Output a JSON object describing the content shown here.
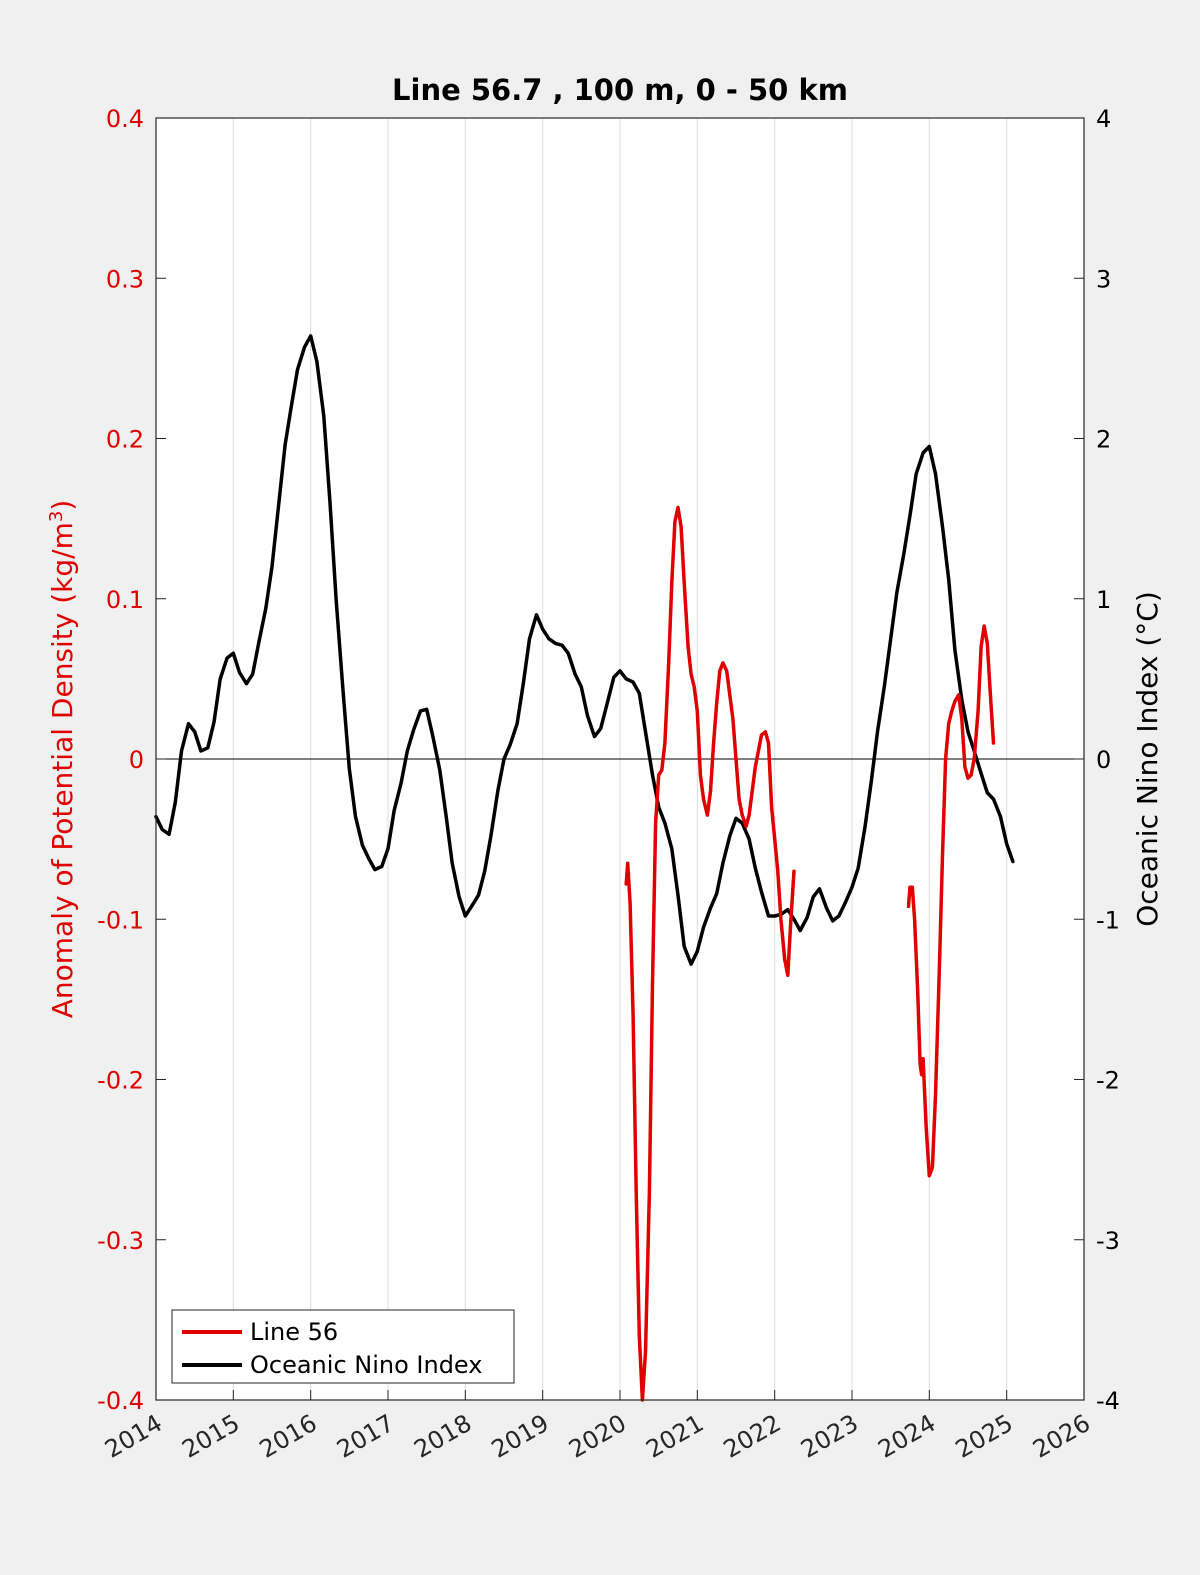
{
  "chart_data": {
    "type": "line",
    "title": "Line 56.7 , 100 m, 0 - 50 km",
    "ylabel_left_main": "Anomaly of Potential Density (kg/m",
    "ylabel_left_sup": "3",
    "ylabel_left_end": ")",
    "ylabel_right": "Oceanic Nino Index (°C)",
    "xlim": [
      2014,
      2026
    ],
    "ylim_left": [
      -0.4,
      0.4
    ],
    "ylim_right": [
      -4,
      4
    ],
    "x_ticks": [
      "2014",
      "2015",
      "2016",
      "2017",
      "2018",
      "2019",
      "2020",
      "2021",
      "2022",
      "2023",
      "2024",
      "2025",
      "2026"
    ],
    "y_left_ticks": [
      "-0.4",
      "-0.3",
      "-0.2",
      "-0.1",
      "0",
      "0.1",
      "0.2",
      "0.3",
      "0.4"
    ],
    "y_right_ticks": [
      "-4",
      "-3",
      "-2",
      "-1",
      "0",
      "1",
      "2",
      "3",
      "4"
    ],
    "grid": "vertical",
    "legend_position": "bottom-left",
    "colors": {
      "line56": "#e00000",
      "oni": "#000000",
      "left_axis": "#e00000"
    },
    "series": [
      {
        "name": "Line 56",
        "axis": "left",
        "segments": [
          [
            [
              2020.08,
              -0.078
            ],
            [
              2020.1,
              -0.065
            ],
            [
              2020.13,
              -0.09
            ],
            [
              2020.17,
              -0.16
            ],
            [
              2020.21,
              -0.27
            ],
            [
              2020.25,
              -0.36
            ],
            [
              2020.29,
              -0.4
            ],
            [
              2020.33,
              -0.37
            ],
            [
              2020.38,
              -0.27
            ],
            [
              2020.42,
              -0.14
            ],
            [
              2020.46,
              -0.04
            ],
            [
              2020.5,
              -0.01
            ],
            [
              2020.54,
              -0.007
            ],
            [
              2020.58,
              0.01
            ],
            [
              2020.63,
              0.06
            ],
            [
              2020.67,
              0.11
            ],
            [
              2020.71,
              0.148
            ],
            [
              2020.75,
              0.157
            ],
            [
              2020.79,
              0.145
            ],
            [
              2020.83,
              0.11
            ],
            [
              2020.88,
              0.07
            ],
            [
              2020.92,
              0.053
            ],
            [
              2020.96,
              0.045
            ],
            [
              2021.0,
              0.03
            ],
            [
              2021.04,
              -0.01
            ],
            [
              2021.08,
              -0.025
            ],
            [
              2021.13,
              -0.035
            ],
            [
              2021.17,
              -0.02
            ],
            [
              2021.21,
              0.01
            ],
            [
              2021.25,
              0.035
            ],
            [
              2021.29,
              0.055
            ],
            [
              2021.33,
              0.06
            ],
            [
              2021.38,
              0.055
            ],
            [
              2021.42,
              0.04
            ],
            [
              2021.46,
              0.025
            ],
            [
              2021.5,
              0.0
            ],
            [
              2021.54,
              -0.025
            ],
            [
              2021.58,
              -0.035
            ],
            [
              2021.63,
              -0.042
            ],
            [
              2021.67,
              -0.035
            ],
            [
              2021.71,
              -0.02
            ],
            [
              2021.75,
              -0.005
            ],
            [
              2021.79,
              0.005
            ],
            [
              2021.83,
              0.015
            ],
            [
              2021.88,
              0.017
            ],
            [
              2021.92,
              0.01
            ],
            [
              2021.96,
              -0.03
            ],
            [
              2022.0,
              -0.05
            ],
            [
              2022.04,
              -0.07
            ],
            [
              2022.08,
              -0.1
            ],
            [
              2022.13,
              -0.125
            ],
            [
              2022.17,
              -0.135
            ],
            [
              2022.21,
              -0.1
            ],
            [
              2022.25,
              -0.07
            ]
          ],
          [
            [
              2023.73,
              -0.092
            ],
            [
              2023.75,
              -0.08
            ],
            [
              2023.78,
              -0.08
            ],
            [
              2023.81,
              -0.1
            ],
            [
              2023.85,
              -0.145
            ],
            [
              2023.88,
              -0.19
            ],
            [
              2023.9,
              -0.197
            ],
            [
              2023.92,
              -0.187
            ],
            [
              2023.96,
              -0.23
            ],
            [
              2024.0,
              -0.26
            ],
            [
              2024.04,
              -0.255
            ],
            [
              2024.08,
              -0.21
            ],
            [
              2024.13,
              -0.13
            ],
            [
              2024.17,
              -0.06
            ],
            [
              2024.21,
              0.0
            ],
            [
              2024.25,
              0.022
            ],
            [
              2024.29,
              0.03
            ],
            [
              2024.33,
              0.036
            ],
            [
              2024.38,
              0.04
            ],
            [
              2024.42,
              0.025
            ],
            [
              2024.46,
              -0.005
            ],
            [
              2024.5,
              -0.012
            ],
            [
              2024.54,
              -0.01
            ],
            [
              2024.58,
              0.0
            ],
            [
              2024.63,
              0.03
            ],
            [
              2024.67,
              0.07
            ],
            [
              2024.71,
              0.083
            ],
            [
              2024.75,
              0.072
            ],
            [
              2024.79,
              0.04
            ],
            [
              2024.83,
              0.01
            ]
          ]
        ]
      },
      {
        "name": "Oceanic Nino Index",
        "axis": "right",
        "points": [
          [
            2014.0,
            -0.36
          ],
          [
            2014.08,
            -0.44
          ],
          [
            2014.17,
            -0.47
          ],
          [
            2014.25,
            -0.27
          ],
          [
            2014.33,
            0.05
          ],
          [
            2014.42,
            0.22
          ],
          [
            2014.5,
            0.17
          ],
          [
            2014.58,
            0.05
          ],
          [
            2014.67,
            0.07
          ],
          [
            2014.75,
            0.23
          ],
          [
            2014.83,
            0.5
          ],
          [
            2014.92,
            0.63
          ],
          [
            2015.0,
            0.66
          ],
          [
            2015.08,
            0.54
          ],
          [
            2015.17,
            0.47
          ],
          [
            2015.25,
            0.53
          ],
          [
            2015.33,
            0.73
          ],
          [
            2015.42,
            0.94
          ],
          [
            2015.5,
            1.2
          ],
          [
            2015.58,
            1.56
          ],
          [
            2015.67,
            1.96
          ],
          [
            2015.75,
            2.2
          ],
          [
            2015.83,
            2.43
          ],
          [
            2015.92,
            2.57
          ],
          [
            2016.0,
            2.64
          ],
          [
            2016.08,
            2.48
          ],
          [
            2016.17,
            2.14
          ],
          [
            2016.25,
            1.6
          ],
          [
            2016.33,
            0.99
          ],
          [
            2016.42,
            0.42
          ],
          [
            2016.5,
            -0.06
          ],
          [
            2016.58,
            -0.36
          ],
          [
            2016.67,
            -0.54
          ],
          [
            2016.75,
            -0.62
          ],
          [
            2016.83,
            -0.69
          ],
          [
            2016.92,
            -0.67
          ],
          [
            2017.0,
            -0.56
          ],
          [
            2017.08,
            -0.32
          ],
          [
            2017.17,
            -0.15
          ],
          [
            2017.25,
            0.05
          ],
          [
            2017.33,
            0.18
          ],
          [
            2017.42,
            0.3
          ],
          [
            2017.5,
            0.31
          ],
          [
            2017.58,
            0.14
          ],
          [
            2017.67,
            -0.07
          ],
          [
            2017.75,
            -0.35
          ],
          [
            2017.83,
            -0.65
          ],
          [
            2017.92,
            -0.86
          ],
          [
            2018.0,
            -0.98
          ],
          [
            2018.08,
            -0.92
          ],
          [
            2018.17,
            -0.85
          ],
          [
            2018.25,
            -0.7
          ],
          [
            2018.33,
            -0.48
          ],
          [
            2018.42,
            -0.2
          ],
          [
            2018.5,
            0.0
          ],
          [
            2018.58,
            0.09
          ],
          [
            2018.67,
            0.22
          ],
          [
            2018.75,
            0.47
          ],
          [
            2018.83,
            0.75
          ],
          [
            2018.92,
            0.9
          ],
          [
            2019.0,
            0.81
          ],
          [
            2019.08,
            0.75
          ],
          [
            2019.17,
            0.72
          ],
          [
            2019.25,
            0.71
          ],
          [
            2019.33,
            0.66
          ],
          [
            2019.42,
            0.53
          ],
          [
            2019.5,
            0.45
          ],
          [
            2019.58,
            0.27
          ],
          [
            2019.67,
            0.14
          ],
          [
            2019.75,
            0.19
          ],
          [
            2019.83,
            0.34
          ],
          [
            2019.92,
            0.51
          ],
          [
            2020.0,
            0.55
          ],
          [
            2020.08,
            0.5
          ],
          [
            2020.17,
            0.48
          ],
          [
            2020.25,
            0.41
          ],
          [
            2020.33,
            0.17
          ],
          [
            2020.42,
            -0.1
          ],
          [
            2020.5,
            -0.3
          ],
          [
            2020.58,
            -0.4
          ],
          [
            2020.67,
            -0.56
          ],
          [
            2020.75,
            -0.85
          ],
          [
            2020.83,
            -1.17
          ],
          [
            2020.92,
            -1.28
          ],
          [
            2021.0,
            -1.2
          ],
          [
            2021.08,
            -1.05
          ],
          [
            2021.17,
            -0.93
          ],
          [
            2021.25,
            -0.84
          ],
          [
            2021.33,
            -0.65
          ],
          [
            2021.42,
            -0.48
          ],
          [
            2021.5,
            -0.37
          ],
          [
            2021.58,
            -0.4
          ],
          [
            2021.67,
            -0.5
          ],
          [
            2021.75,
            -0.68
          ],
          [
            2021.83,
            -0.83
          ],
          [
            2021.92,
            -0.98
          ],
          [
            2022.0,
            -0.98
          ],
          [
            2022.08,
            -0.97
          ],
          [
            2022.17,
            -0.94
          ],
          [
            2022.25,
            -1.0
          ],
          [
            2022.33,
            -1.07
          ],
          [
            2022.42,
            -0.99
          ],
          [
            2022.5,
            -0.86
          ],
          [
            2022.58,
            -0.81
          ],
          [
            2022.67,
            -0.93
          ],
          [
            2022.75,
            -1.01
          ],
          [
            2022.83,
            -0.98
          ],
          [
            2022.92,
            -0.89
          ],
          [
            2023.0,
            -0.8
          ],
          [
            2023.08,
            -0.68
          ],
          [
            2023.17,
            -0.42
          ],
          [
            2023.25,
            -0.14
          ],
          [
            2023.33,
            0.17
          ],
          [
            2023.42,
            0.46
          ],
          [
            2023.5,
            0.75
          ],
          [
            2023.58,
            1.04
          ],
          [
            2023.67,
            1.28
          ],
          [
            2023.75,
            1.52
          ],
          [
            2023.83,
            1.78
          ],
          [
            2023.92,
            1.91
          ],
          [
            2024.0,
            1.95
          ],
          [
            2024.08,
            1.78
          ],
          [
            2024.17,
            1.45
          ],
          [
            2024.25,
            1.12
          ],
          [
            2024.33,
            0.68
          ],
          [
            2024.42,
            0.37
          ],
          [
            2024.5,
            0.17
          ],
          [
            2024.58,
            0.05
          ],
          [
            2024.67,
            -0.09
          ],
          [
            2024.75,
            -0.21
          ],
          [
            2024.83,
            -0.25
          ],
          [
            2024.92,
            -0.36
          ],
          [
            2025.0,
            -0.53
          ],
          [
            2025.08,
            -0.64
          ]
        ]
      }
    ]
  }
}
